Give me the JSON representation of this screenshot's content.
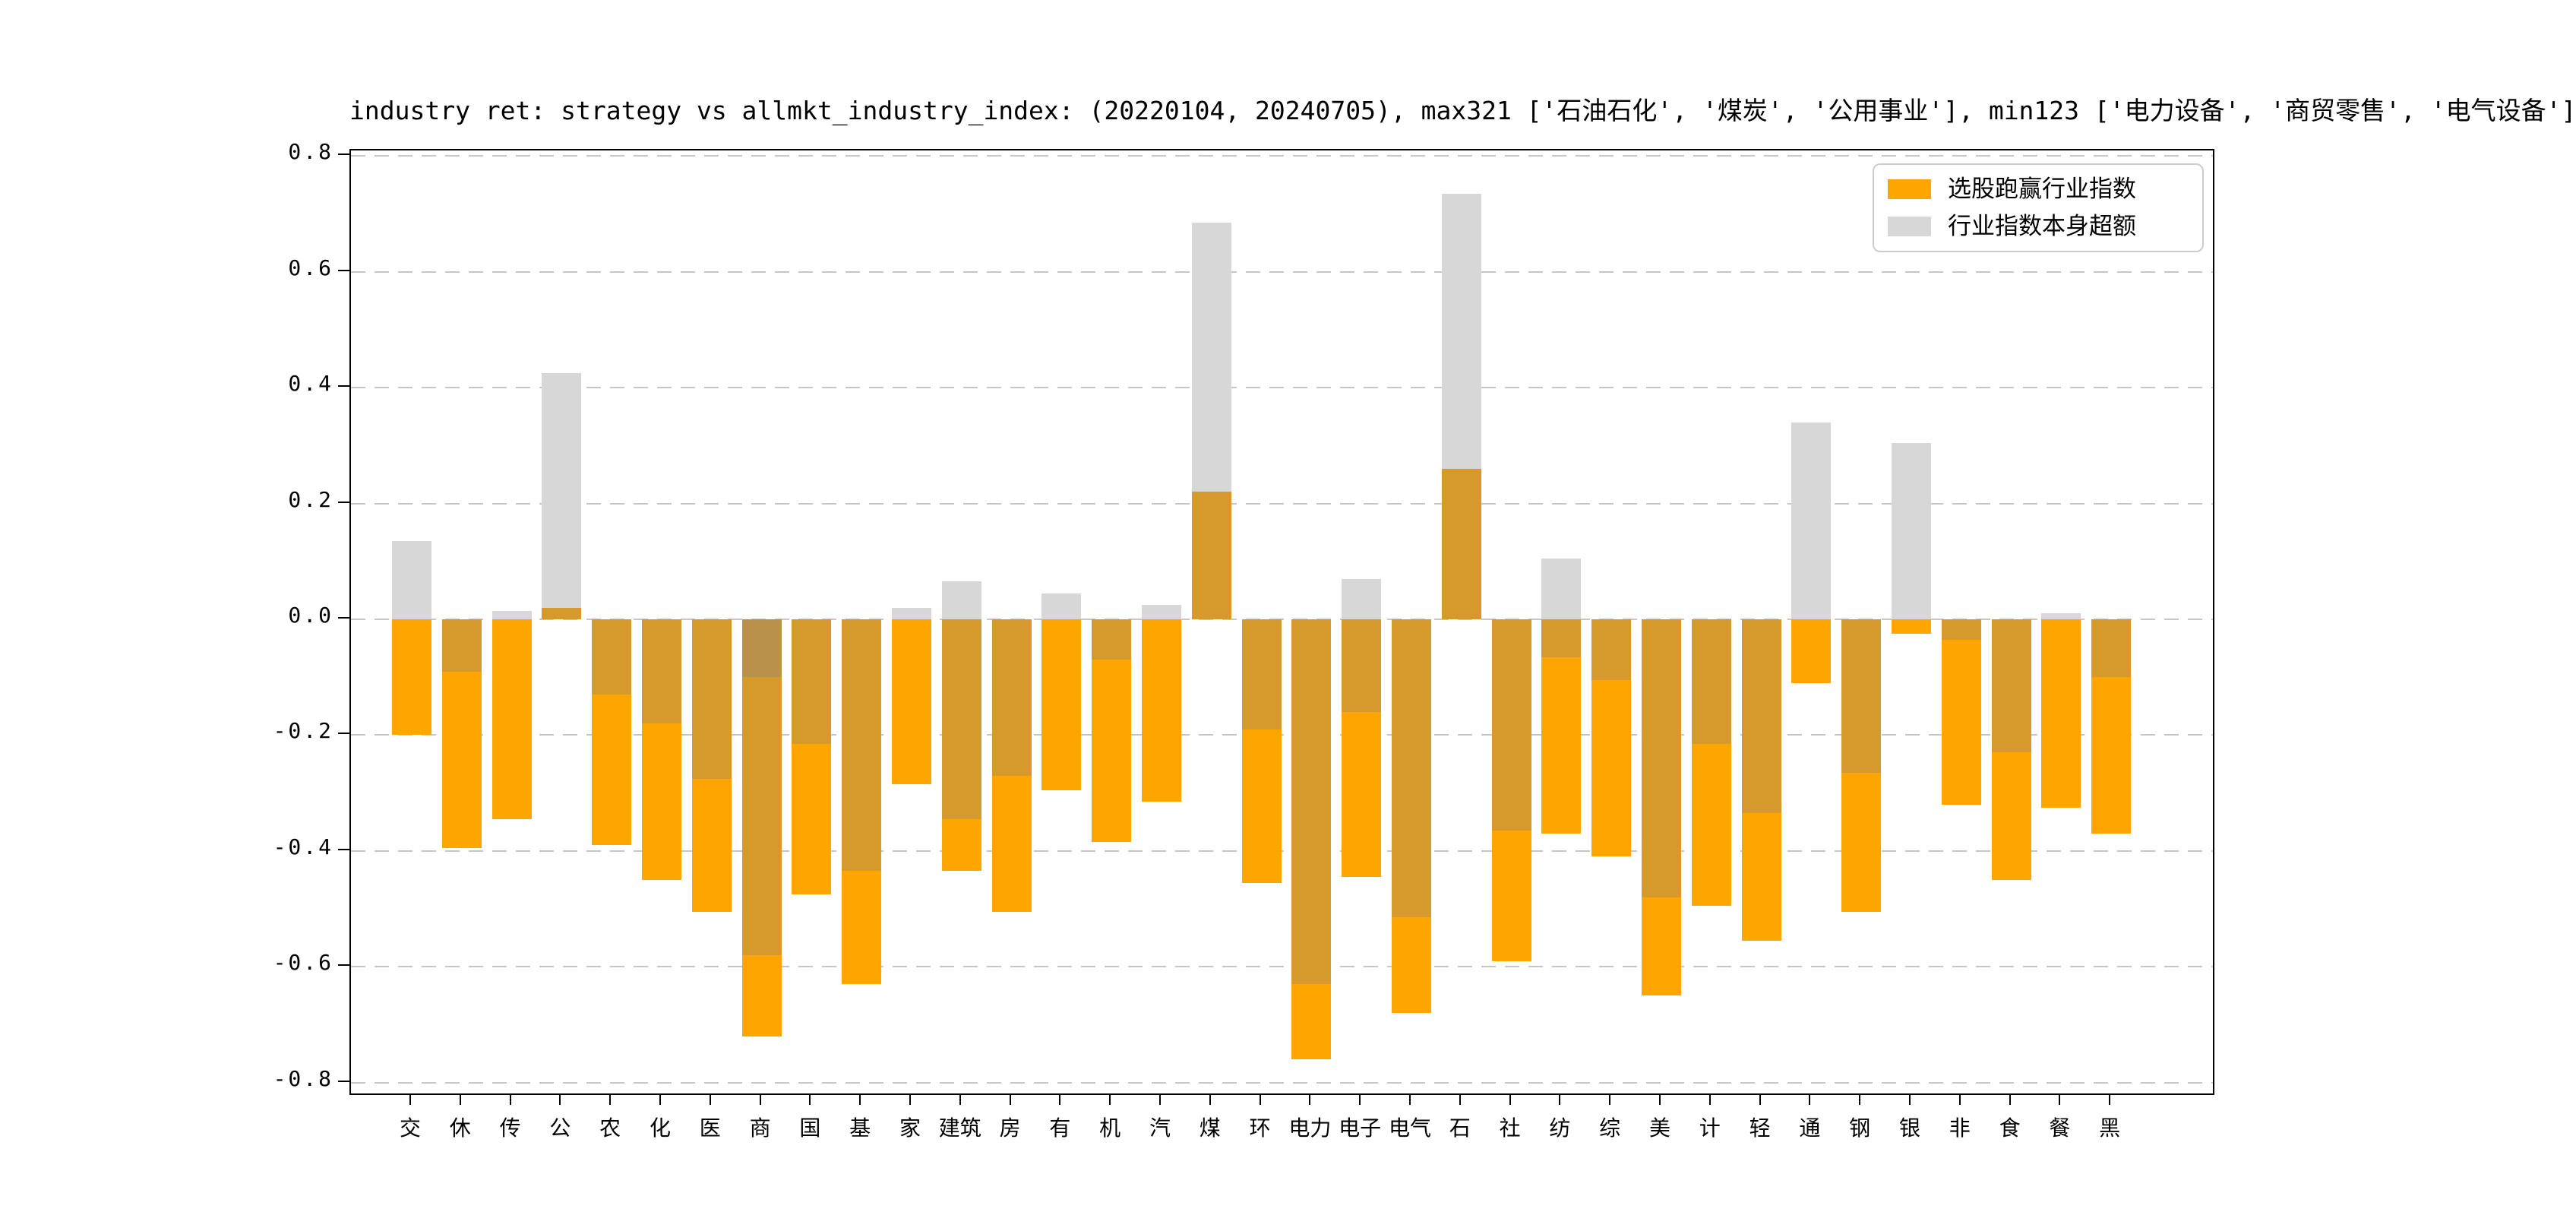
{
  "chart_data": {
    "type": "bar",
    "title": "industry ret: strategy vs allmkt_industry_index: (20220104, 20240705), max321 ['石油石化', '煤炭', '公用事业'], min123 ['电力设备', '商贸零售', '电气设备']",
    "xlabel": "",
    "ylabel": "",
    "ylim": [
      -0.82,
      0.81
    ],
    "grid": "horizontal-dashed",
    "legend_position": "upper-right",
    "yticks": [
      "0.8",
      "0.6",
      "0.4",
      "0.2",
      "0.0",
      "-0.2",
      "-0.4",
      "-0.6",
      "-0.8"
    ],
    "legend": [
      {
        "label": "选股跑赢行业指数",
        "color_key": "orange"
      },
      {
        "label": "行业指数本身超额",
        "color_key": "gray"
      }
    ],
    "colors": {
      "orange": "#FFA500",
      "gray": "#D7D7D7",
      "tan": "#D6992B",
      "dark": "#B9914B",
      "grid": "#C6C6C6",
      "spine": "#000000"
    },
    "color_meaning": {
      "orange": "选股跑赢行业指数 (strategy vs industry index)",
      "gray": "行业指数本身超额 (industry index own excess)",
      "tan": "overlap of orange and gray bars",
      "dark": "overlap of orange, tan and gray"
    },
    "categories": [
      "交",
      "休",
      "传",
      "公",
      "农",
      "化",
      "医",
      "商",
      "国",
      "基",
      "家",
      "建筑",
      "房",
      "有",
      "机",
      "汽",
      "煤",
      "环",
      "电力",
      "电子",
      "电气",
      "石",
      "社",
      "纺",
      "综",
      "美",
      "计",
      "轻",
      "通",
      "钢",
      "银",
      "非",
      "食",
      "餐",
      "黑"
    ],
    "bars": [
      {
        "label": "交",
        "orange_value": -0.2,
        "gray_value": 0.135,
        "segments": [
          {
            "color": "gray",
            "from": 0,
            "to": 0.135
          },
          {
            "color": "orange",
            "from": -0.2,
            "to": 0
          }
        ]
      },
      {
        "label": "休",
        "orange_value": -0.395,
        "gray_value": -0.09,
        "segments": [
          {
            "color": "tan",
            "from": -0.09,
            "to": 0
          },
          {
            "color": "orange",
            "from": -0.395,
            "to": -0.09
          }
        ]
      },
      {
        "label": "传",
        "orange_value": -0.345,
        "gray_value": 0.015,
        "segments": [
          {
            "color": "gray",
            "from": 0,
            "to": 0.015
          },
          {
            "color": "orange",
            "from": -0.345,
            "to": 0
          }
        ]
      },
      {
        "label": "公",
        "orange_value": 0.02,
        "gray_value": 0.425,
        "segments": [
          {
            "color": "tan",
            "from": 0,
            "to": 0.02
          },
          {
            "color": "gray",
            "from": 0.02,
            "to": 0.425
          }
        ]
      },
      {
        "label": "农",
        "orange_value": -0.39,
        "gray_value": -0.13,
        "segments": [
          {
            "color": "tan",
            "from": -0.13,
            "to": 0
          },
          {
            "color": "orange",
            "from": -0.39,
            "to": -0.13
          }
        ]
      },
      {
        "label": "化",
        "orange_value": -0.45,
        "gray_value": -0.18,
        "segments": [
          {
            "color": "tan",
            "from": -0.18,
            "to": 0
          },
          {
            "color": "orange",
            "from": -0.45,
            "to": -0.18
          }
        ]
      },
      {
        "label": "医",
        "orange_value": -0.505,
        "gray_value": -0.275,
        "segments": [
          {
            "color": "tan",
            "from": -0.275,
            "to": 0
          },
          {
            "color": "orange",
            "from": -0.505,
            "to": -0.275
          }
        ]
      },
      {
        "label": "商",
        "orange_value": -0.72,
        "gray_value": -0.58,
        "segments": [
          {
            "color": "dark",
            "from": -0.1,
            "to": 0
          },
          {
            "color": "tan",
            "from": -0.58,
            "to": -0.1
          },
          {
            "color": "orange",
            "from": -0.72,
            "to": -0.58
          }
        ]
      },
      {
        "label": "国",
        "orange_value": -0.475,
        "gray_value": -0.215,
        "segments": [
          {
            "color": "tan",
            "from": -0.215,
            "to": 0
          },
          {
            "color": "orange",
            "from": -0.475,
            "to": -0.215
          }
        ]
      },
      {
        "label": "基",
        "orange_value": -0.63,
        "gray_value": -0.435,
        "segments": [
          {
            "color": "tan",
            "from": -0.435,
            "to": 0
          },
          {
            "color": "orange",
            "from": -0.63,
            "to": -0.435
          }
        ]
      },
      {
        "label": "家",
        "orange_value": -0.285,
        "gray_value": 0.02,
        "segments": [
          {
            "color": "gray",
            "from": 0,
            "to": 0.02
          },
          {
            "color": "orange",
            "from": -0.285,
            "to": 0
          }
        ]
      },
      {
        "label": "建筑",
        "orange_value": -0.435,
        "gray_value": 0.065,
        "segments": [
          {
            "color": "gray",
            "from": 0,
            "to": 0.065
          },
          {
            "color": "tan",
            "from": -0.345,
            "to": 0
          },
          {
            "color": "orange",
            "from": -0.435,
            "to": -0.345
          }
        ]
      },
      {
        "label": "房",
        "orange_value": -0.505,
        "gray_value": -0.27,
        "segments": [
          {
            "color": "tan",
            "from": -0.27,
            "to": 0
          },
          {
            "color": "orange",
            "from": -0.505,
            "to": -0.27
          }
        ]
      },
      {
        "label": "有",
        "orange_value": -0.295,
        "gray_value": 0.045,
        "segments": [
          {
            "color": "gray",
            "from": 0,
            "to": 0.045
          },
          {
            "color": "orange",
            "from": -0.295,
            "to": 0
          }
        ]
      },
      {
        "label": "机",
        "orange_value": -0.385,
        "gray_value": -0.07,
        "segments": [
          {
            "color": "tan",
            "from": -0.07,
            "to": 0
          },
          {
            "color": "orange",
            "from": -0.385,
            "to": -0.07
          }
        ]
      },
      {
        "label": "汽",
        "orange_value": -0.315,
        "gray_value": 0.025,
        "segments": [
          {
            "color": "gray",
            "from": 0,
            "to": 0.025
          },
          {
            "color": "orange",
            "from": -0.315,
            "to": 0
          }
        ]
      },
      {
        "label": "煤",
        "orange_value": 0.22,
        "gray_value": 0.685,
        "segments": [
          {
            "color": "tan",
            "from": 0,
            "to": 0.22
          },
          {
            "color": "gray",
            "from": 0.22,
            "to": 0.685
          }
        ]
      },
      {
        "label": "环",
        "orange_value": -0.455,
        "gray_value": -0.19,
        "segments": [
          {
            "color": "tan",
            "from": -0.19,
            "to": 0
          },
          {
            "color": "orange",
            "from": -0.455,
            "to": -0.19
          }
        ]
      },
      {
        "label": "电力",
        "orange_value": -0.76,
        "gray_value": -0.63,
        "segments": [
          {
            "color": "tan",
            "from": -0.63,
            "to": 0
          },
          {
            "color": "orange",
            "from": -0.76,
            "to": -0.63
          }
        ]
      },
      {
        "label": "电子",
        "orange_value": -0.445,
        "gray_value": 0.07,
        "segments": [
          {
            "color": "gray",
            "from": 0,
            "to": 0.07
          },
          {
            "color": "tan",
            "from": -0.16,
            "to": 0
          },
          {
            "color": "orange",
            "from": -0.445,
            "to": -0.16
          }
        ]
      },
      {
        "label": "电气",
        "orange_value": -0.68,
        "gray_value": -0.515,
        "segments": [
          {
            "color": "tan",
            "from": -0.515,
            "to": 0
          },
          {
            "color": "orange",
            "from": -0.68,
            "to": -0.515
          }
        ]
      },
      {
        "label": "石",
        "orange_value": 0.26,
        "gray_value": 0.735,
        "segments": [
          {
            "color": "tan",
            "from": 0,
            "to": 0.26
          },
          {
            "color": "gray",
            "from": 0.26,
            "to": 0.735
          }
        ]
      },
      {
        "label": "社",
        "orange_value": -0.59,
        "gray_value": -0.365,
        "segments": [
          {
            "color": "tan",
            "from": -0.365,
            "to": 0
          },
          {
            "color": "orange",
            "from": -0.59,
            "to": -0.365
          }
        ]
      },
      {
        "label": "纺",
        "orange_value": -0.37,
        "gray_value": 0.105,
        "segments": [
          {
            "color": "gray",
            "from": 0,
            "to": 0.105
          },
          {
            "color": "tan",
            "from": -0.065,
            "to": 0
          },
          {
            "color": "orange",
            "from": -0.37,
            "to": -0.065
          }
        ]
      },
      {
        "label": "综",
        "orange_value": -0.41,
        "gray_value": -0.105,
        "segments": [
          {
            "color": "tan",
            "from": -0.105,
            "to": 0
          },
          {
            "color": "orange",
            "from": -0.41,
            "to": -0.105
          }
        ]
      },
      {
        "label": "美",
        "orange_value": -0.65,
        "gray_value": -0.48,
        "segments": [
          {
            "color": "tan",
            "from": -0.48,
            "to": 0
          },
          {
            "color": "orange",
            "from": -0.65,
            "to": -0.48
          }
        ]
      },
      {
        "label": "计",
        "orange_value": -0.495,
        "gray_value": -0.215,
        "segments": [
          {
            "color": "tan",
            "from": -0.215,
            "to": 0
          },
          {
            "color": "orange",
            "from": -0.495,
            "to": -0.215
          }
        ]
      },
      {
        "label": "轻",
        "orange_value": -0.555,
        "gray_value": -0.335,
        "segments": [
          {
            "color": "tan",
            "from": -0.335,
            "to": 0
          },
          {
            "color": "orange",
            "from": -0.555,
            "to": -0.335
          }
        ]
      },
      {
        "label": "通",
        "orange_value": -0.11,
        "gray_value": 0.34,
        "segments": [
          {
            "color": "gray",
            "from": 0,
            "to": 0.34
          },
          {
            "color": "orange",
            "from": -0.11,
            "to": 0
          }
        ]
      },
      {
        "label": "钢",
        "orange_value": -0.505,
        "gray_value": -0.265,
        "segments": [
          {
            "color": "tan",
            "from": -0.265,
            "to": 0
          },
          {
            "color": "orange",
            "from": -0.505,
            "to": -0.265
          }
        ]
      },
      {
        "label": "银",
        "orange_value": -0.025,
        "gray_value": 0.305,
        "segments": [
          {
            "color": "gray",
            "from": 0,
            "to": 0.305
          },
          {
            "color": "orange",
            "from": -0.025,
            "to": 0
          }
        ]
      },
      {
        "label": "非",
        "orange_value": -0.32,
        "gray_value": -0.035,
        "segments": [
          {
            "color": "tan",
            "from": -0.035,
            "to": 0
          },
          {
            "color": "orange",
            "from": -0.32,
            "to": -0.035
          }
        ]
      },
      {
        "label": "食",
        "orange_value": -0.45,
        "gray_value": -0.23,
        "segments": [
          {
            "color": "tan",
            "from": -0.23,
            "to": 0
          },
          {
            "color": "orange",
            "from": -0.45,
            "to": -0.23
          }
        ]
      },
      {
        "label": "餐",
        "orange_value": -0.325,
        "gray_value": 0.01,
        "segments": [
          {
            "color": "gray",
            "from": 0,
            "to": 0.01
          },
          {
            "color": "orange",
            "from": -0.325,
            "to": 0
          }
        ]
      },
      {
        "label": "黑",
        "orange_value": -0.37,
        "gray_value": -0.1,
        "segments": [
          {
            "color": "tan",
            "from": -0.1,
            "to": 0
          },
          {
            "color": "orange",
            "from": -0.37,
            "to": -0.1
          }
        ]
      }
    ]
  }
}
